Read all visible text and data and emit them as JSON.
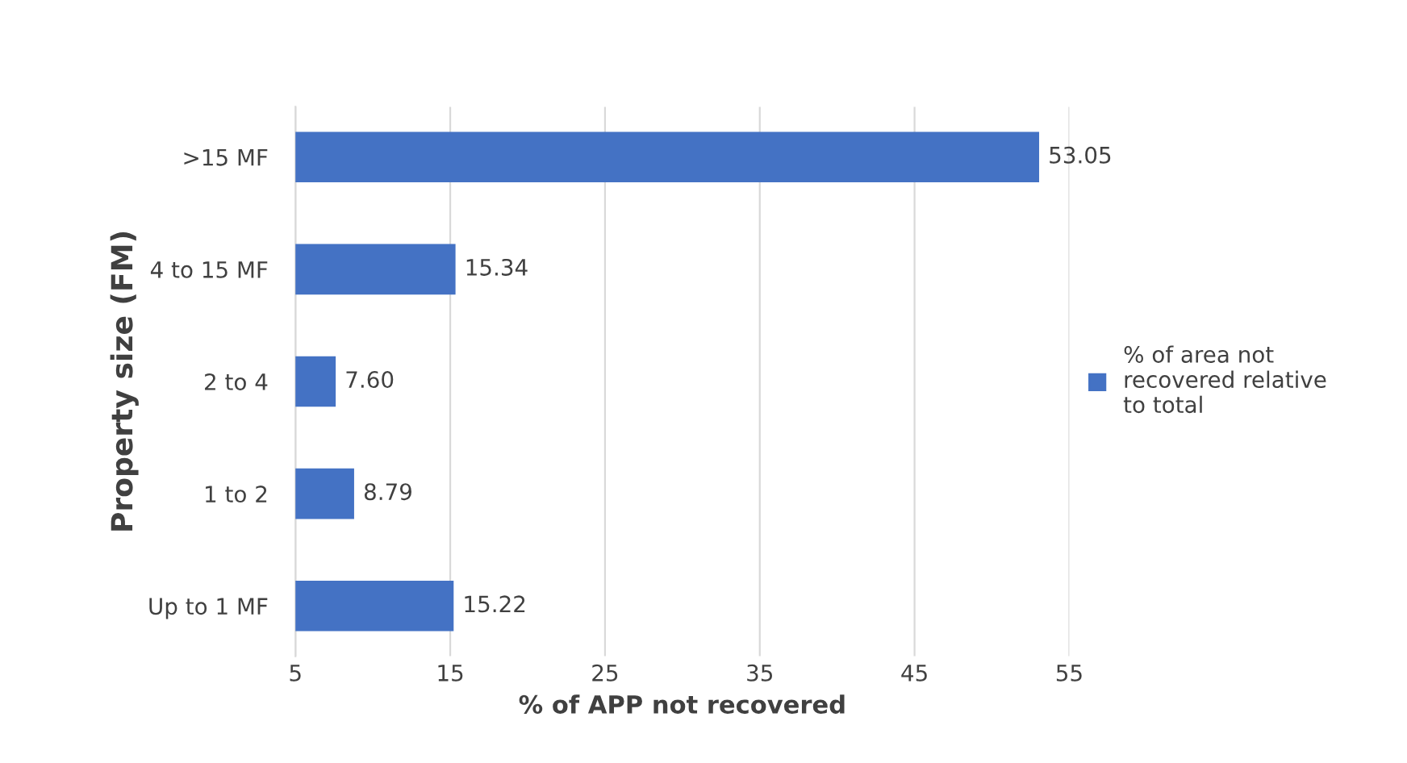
{
  "chart_data": {
    "type": "bar",
    "orientation": "horizontal",
    "xlabel": "% of APP not recovered",
    "ylabel": "Property size (FM)",
    "categories": [
      ">15 MF",
      "4 to 15 MF",
      "2 to 4",
      "1 to 2",
      "Up to 1 MF"
    ],
    "series": [
      {
        "name": "% of area not\nrecovered relative\nto total",
        "color": "#4472c4",
        "values": [
          53.05,
          15.34,
          7.6,
          8.79,
          15.22
        ],
        "value_labels": [
          "53.05",
          "15.34",
          "7.60",
          "8.79",
          "15.22"
        ]
      }
    ],
    "xlim": [
      5,
      55
    ],
    "xticks": [
      5,
      15,
      25,
      35,
      45,
      55
    ],
    "grid": "x",
    "legend": "right"
  }
}
